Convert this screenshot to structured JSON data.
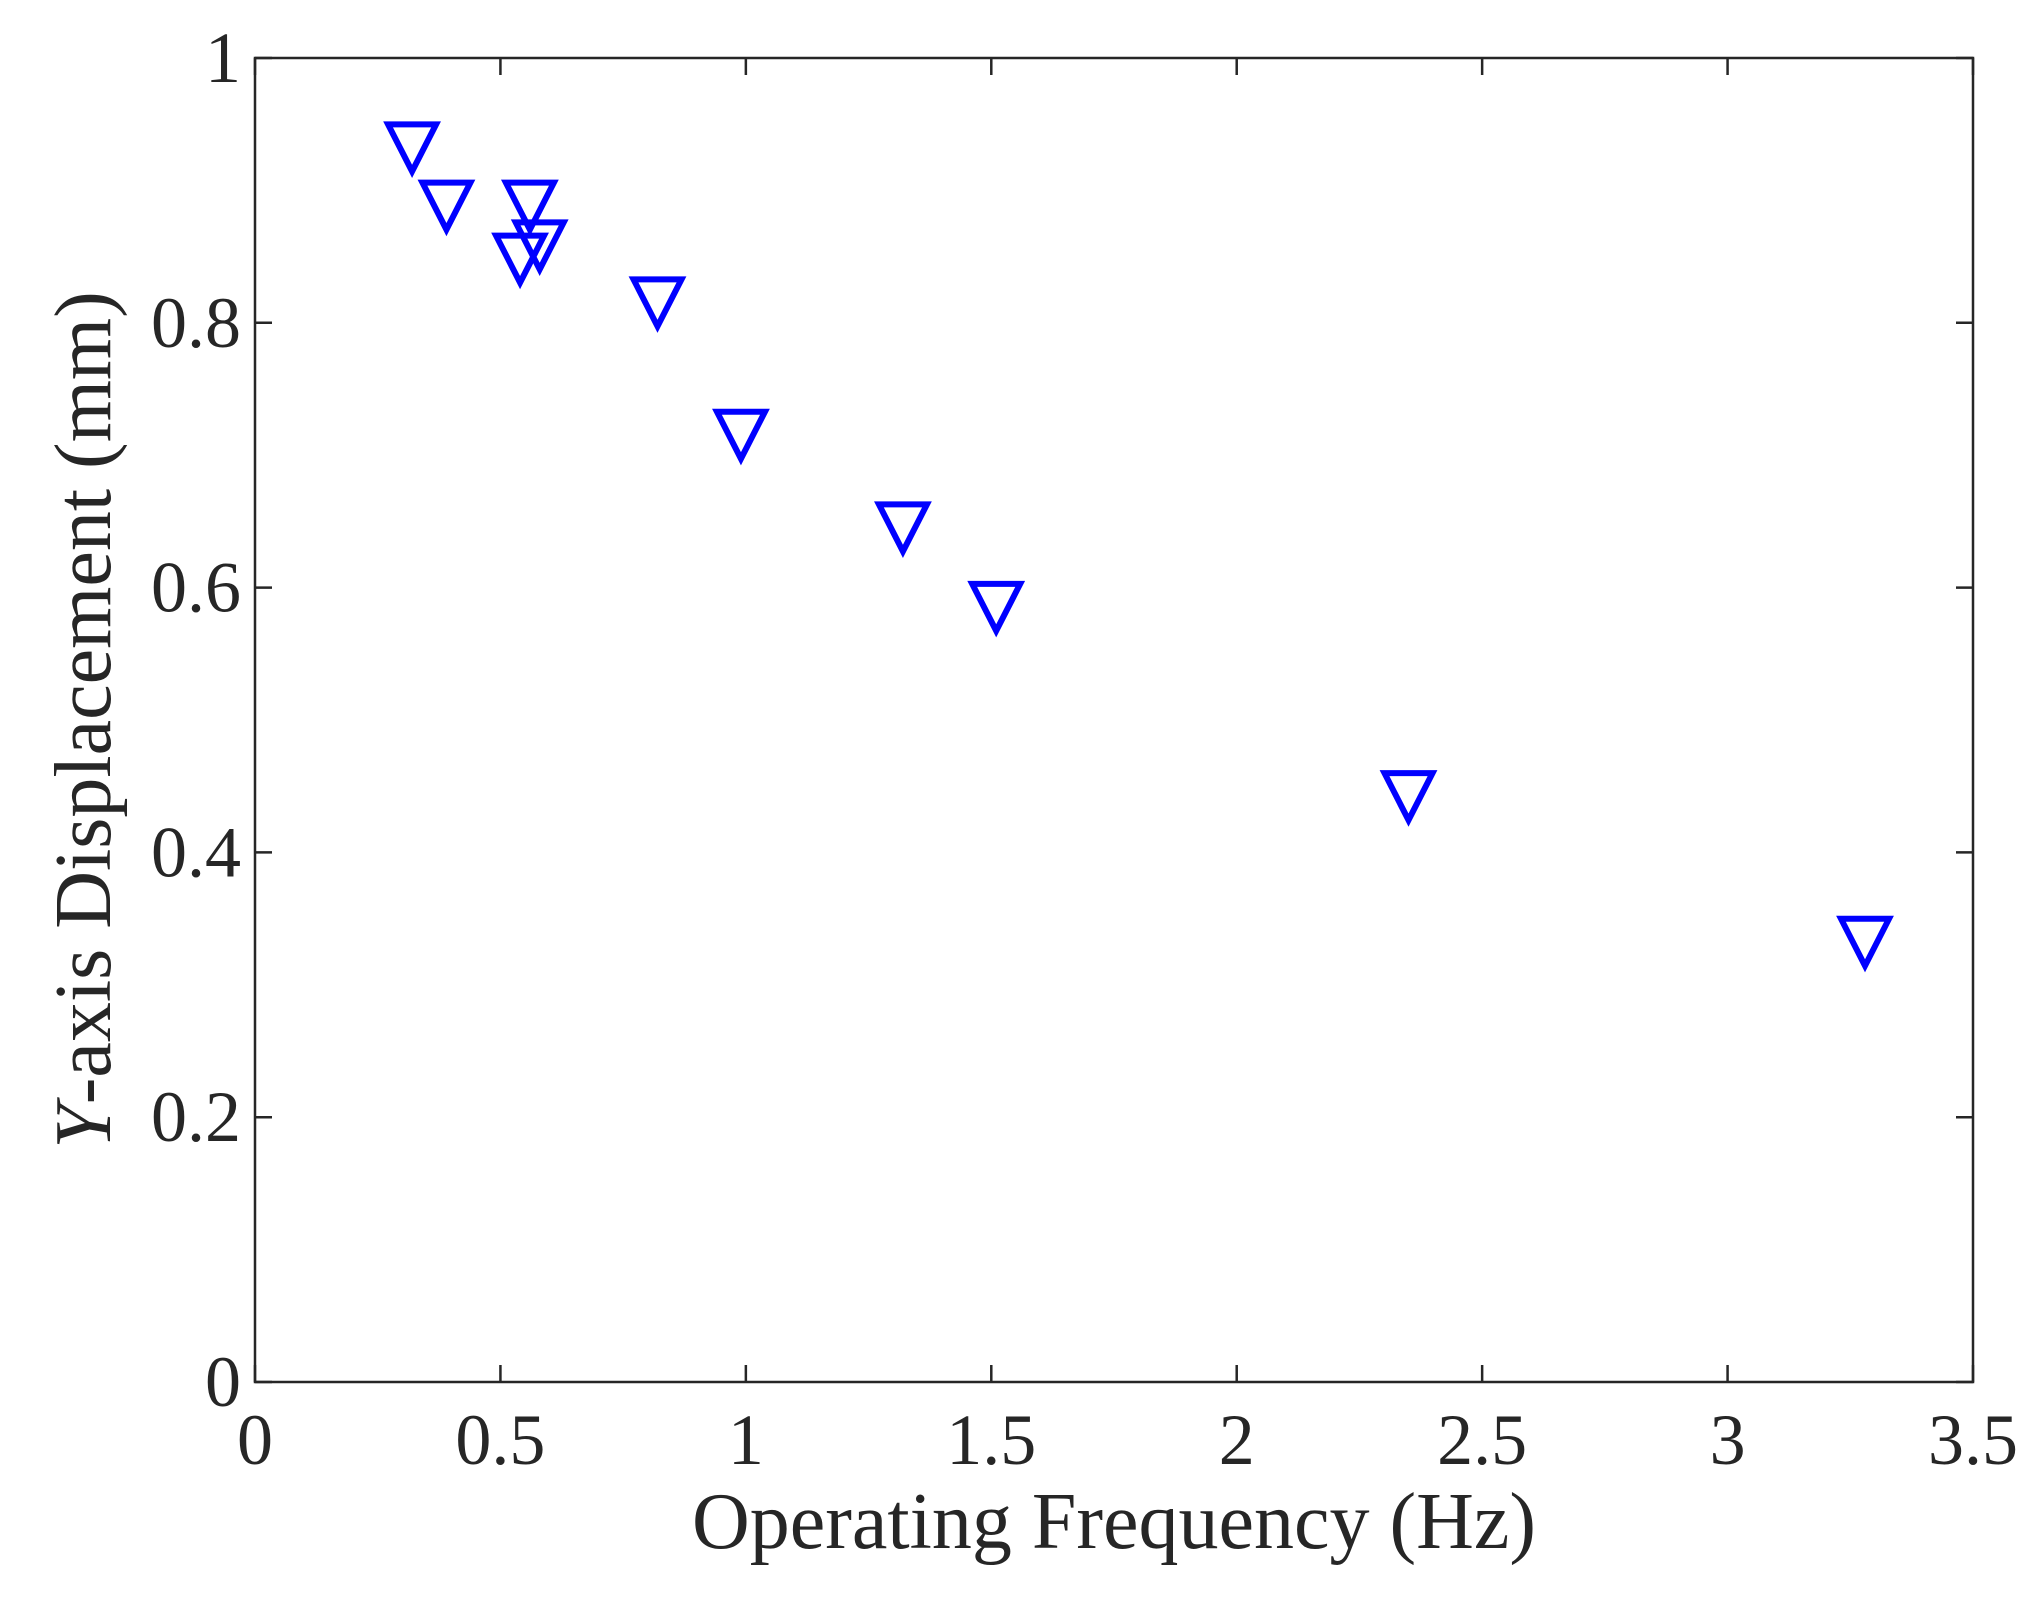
{
  "chart_data": {
    "type": "scatter",
    "title": "",
    "xlabel": "Operating Frequency (Hz)",
    "ylabel_italic_part": "Y",
    "ylabel_rest": "-axis Displacement (mm)",
    "xlim": [
      0,
      3.5
    ],
    "ylim": [
      0,
      1
    ],
    "xticks": [
      0,
      0.5,
      1,
      1.5,
      2,
      2.5,
      3,
      3.5
    ],
    "xtick_labels": [
      "0",
      "0.5",
      "1",
      "1.5",
      "2",
      "2.5",
      "3",
      "3.5"
    ],
    "yticks": [
      0,
      0.2,
      0.4,
      0.6,
      0.8,
      1
    ],
    "ytick_labels": [
      "0",
      "0.2",
      "0.4",
      "0.6",
      "0.8",
      "1"
    ],
    "grid": false,
    "box": true,
    "marker": "downward-triangle",
    "marker_color": "#0000FF",
    "series": [
      {
        "x": [
          0.32,
          0.39,
          0.56,
          0.54,
          0.58,
          0.82,
          0.99,
          1.32,
          1.51,
          2.35,
          3.28
        ],
        "y": [
          0.937,
          0.893,
          0.893,
          0.853,
          0.863,
          0.82,
          0.72,
          0.65,
          0.59,
          0.447,
          0.337
        ]
      }
    ]
  }
}
